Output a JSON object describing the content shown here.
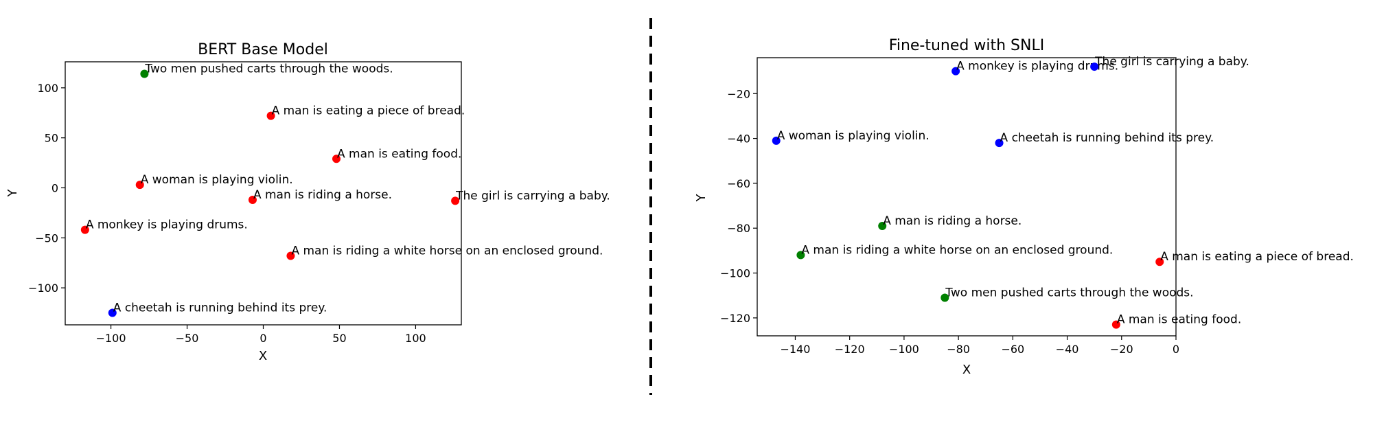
{
  "colors": {
    "red": "#ff0000",
    "green": "#008000",
    "blue": "#0000ff",
    "axis": "#000000"
  },
  "chart_data": [
    {
      "type": "scatter",
      "title": "BERT Base Model",
      "xlabel": "X",
      "ylabel": "Y",
      "xlim": [
        -130,
        130
      ],
      "ylim": [
        -137,
        126
      ],
      "xticks": [
        -100,
        -50,
        0,
        50,
        100
      ],
      "yticks": [
        -100,
        -50,
        0,
        50,
        100
      ],
      "grid": false,
      "points": [
        {
          "x": -78,
          "y": 114,
          "color": "green",
          "label": "Two men pushed carts through the woods."
        },
        {
          "x": 5,
          "y": 72,
          "color": "red",
          "label": "A man is eating a piece of bread."
        },
        {
          "x": 48,
          "y": 29,
          "color": "red",
          "label": "A man is eating food."
        },
        {
          "x": -81,
          "y": 3,
          "color": "red",
          "label": "A woman is playing violin."
        },
        {
          "x": -7,
          "y": -12,
          "color": "red",
          "label": "A man is riding a horse."
        },
        {
          "x": 126,
          "y": -13,
          "color": "red",
          "label": "The girl is carrying a baby."
        },
        {
          "x": -117,
          "y": -42,
          "color": "red",
          "label": "A monkey is playing drums."
        },
        {
          "x": 18,
          "y": -68,
          "color": "red",
          "label": "A man is riding a white horse on an enclosed ground."
        },
        {
          "x": -99,
          "y": -125,
          "color": "blue",
          "label": "A cheetah is running behind its prey."
        }
      ]
    },
    {
      "type": "scatter",
      "title": "Fine-tuned with SNLI",
      "xlabel": "X",
      "ylabel": "Y",
      "xlim": [
        -154,
        0
      ],
      "ylim": [
        -128,
        -4
      ],
      "xticks": [
        -140,
        -120,
        -100,
        -80,
        -60,
        -40,
        -20,
        0
      ],
      "yticks": [
        -120,
        -100,
        -80,
        -60,
        -40,
        -20
      ],
      "grid": false,
      "points": [
        {
          "x": -81,
          "y": -10,
          "color": "blue",
          "label": "A monkey is playing drums."
        },
        {
          "x": -30,
          "y": -8,
          "color": "blue",
          "label": "The girl is carrying a baby."
        },
        {
          "x": -147,
          "y": -41,
          "color": "blue",
          "label": "A woman is playing violin."
        },
        {
          "x": -65,
          "y": -42,
          "color": "blue",
          "label": "A cheetah is running behind its prey."
        },
        {
          "x": -108,
          "y": -79,
          "color": "green",
          "label": "A man is riding a horse."
        },
        {
          "x": -138,
          "y": -92,
          "color": "green",
          "label": "A man is riding a white horse on an enclosed ground."
        },
        {
          "x": -6,
          "y": -95,
          "color": "red",
          "label": "A man is eating a piece of bread."
        },
        {
          "x": -85,
          "y": -111,
          "color": "green",
          "label": "Two men pushed carts through the woods."
        },
        {
          "x": -22,
          "y": -123,
          "color": "red",
          "label": "A man is eating food."
        }
      ]
    }
  ]
}
